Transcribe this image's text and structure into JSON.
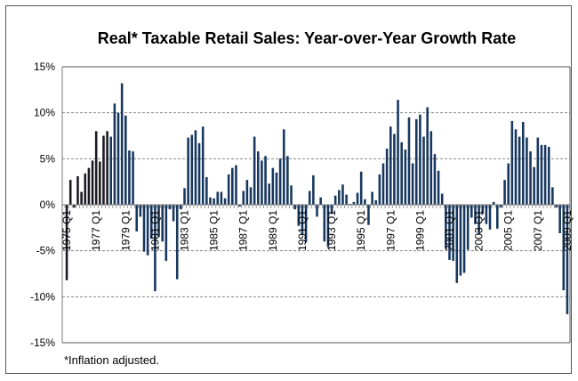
{
  "chart_data": {
    "type": "bar",
    "title": "Real* Taxable Retail Sales: Year-over-Year Growth Rate",
    "footnote": "*Inflation adjusted.",
    "xlabel": "",
    "ylabel": "",
    "ylim": [
      -15,
      15
    ],
    "yticks": [
      "-15%",
      "-10%",
      "-5%",
      "0%",
      "5%",
      "10%",
      "15%"
    ],
    "ytick_values": [
      -15,
      -10,
      -5,
      0,
      5,
      10,
      15
    ],
    "grid": "horizontal dashed",
    "bar_color": "#17375e",
    "first_period": "1975 Q1",
    "last_period": "2009 Q1",
    "xtick_labels": [
      "1975 Q1",
      "1977 Q1",
      "1979 Q1",
      "1981 Q1",
      "1983 Q1",
      "1985 Q1",
      "1987 Q1",
      "1989 Q1",
      "1991 Q1",
      "1993 Q1",
      "1995 Q1",
      "1997 Q1",
      "1999 Q1",
      "2001 Q1",
      "2003 Q1",
      "2005 Q1",
      "2007 Q1",
      "2009 Q1"
    ],
    "values": [
      -8.2,
      2.7,
      -0.3,
      3.1,
      1.4,
      3.4,
      4.0,
      4.8,
      8.0,
      4.7,
      7.5,
      8.0,
      7.4,
      11.0,
      10.0,
      13.2,
      9.7,
      5.9,
      5.8,
      -2.9,
      -1.3,
      -5.1,
      -5.5,
      -3.7,
      -9.4,
      -3.5,
      -4.0,
      -6.1,
      -0.5,
      -1.8,
      -8.1,
      -0.5,
      1.8,
      7.3,
      7.6,
      8.1,
      6.7,
      8.5,
      3.0,
      0.8,
      0.7,
      1.4,
      1.4,
      0.7,
      3.3,
      4.0,
      4.3,
      -0.2,
      1.5,
      2.7,
      1.9,
      7.4,
      5.8,
      4.8,
      5.3,
      2.3,
      4.0,
      3.5,
      5.0,
      8.2,
      5.3,
      2.1,
      -0.5,
      -2.3,
      -3.2,
      -4.1,
      1.5,
      3.2,
      -1.3,
      0.8,
      -4.0,
      -4.6,
      -1.0,
      1.0,
      1.6,
      2.2,
      1.1,
      0.1,
      0.3,
      1.3,
      3.6,
      0.6,
      -2.2,
      1.4,
      0.5,
      3.3,
      4.5,
      6.1,
      8.5,
      7.7,
      11.4,
      6.8,
      6.0,
      9.5,
      4.5,
      9.3,
      9.8,
      7.4,
      10.6,
      8.0,
      5.5,
      3.7,
      1.2,
      -4.8,
      -6.0,
      -6.1,
      -8.5,
      -7.7,
      -7.4,
      -4.9,
      -1.4,
      -2.1,
      -3.2,
      -1.0,
      -2.1,
      -2.7,
      0.3,
      -2.6,
      -0.3,
      2.7,
      4.5,
      9.1,
      8.2,
      7.4,
      9.0,
      7.3,
      5.8,
      4.1,
      7.3,
      6.5,
      6.5,
      6.3,
      1.9,
      -0.3,
      -3.1,
      -9.3,
      -11.9
    ]
  }
}
